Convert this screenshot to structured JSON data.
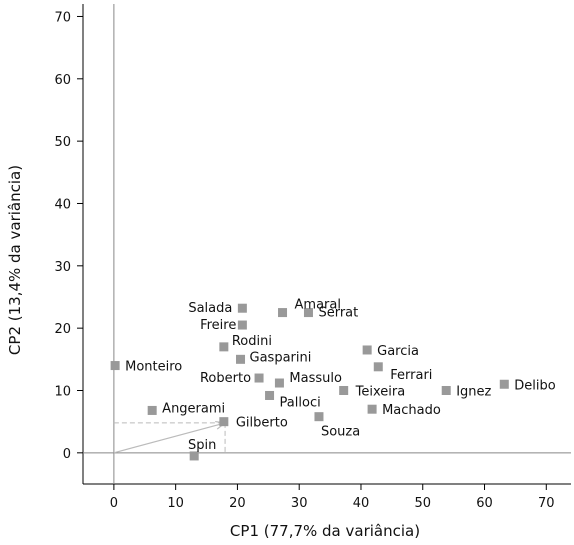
{
  "chart_data": {
    "type": "scatter",
    "xlabel": "CP1 (77,7% da variância)",
    "ylabel": "CP2 (13,4% da variância)",
    "xlim": [
      -5,
      74
    ],
    "ylim": [
      -5,
      72
    ],
    "xticks": [
      0,
      10,
      20,
      30,
      40,
      50,
      60,
      70
    ],
    "yticks": [
      0,
      10,
      20,
      30,
      40,
      50,
      60,
      70
    ],
    "grid": false,
    "legend": "none",
    "point_color": "#999999",
    "axis_color": "#888888",
    "vector": {
      "x": 18,
      "y": 4.8,
      "color": "#bbbbbb"
    },
    "points": [
      {
        "label": "Salada",
        "x": 20.8,
        "y": 23.2
      },
      {
        "label": "Amaral",
        "x": 27.3,
        "y": 22.5
      },
      {
        "label": "Serrat",
        "x": 31.5,
        "y": 22.5
      },
      {
        "label": "Freire",
        "x": 20.8,
        "y": 20.5
      },
      {
        "label": "Rodini",
        "x": 17.8,
        "y": 17.0
      },
      {
        "label": "Gasparini",
        "x": 20.5,
        "y": 15.0
      },
      {
        "label": "Garcia",
        "x": 41.0,
        "y": 16.5
      },
      {
        "label": "Ferrari",
        "x": 42.8,
        "y": 13.8
      },
      {
        "label": "Monteiro",
        "x": 0.2,
        "y": 14.0
      },
      {
        "label": "Roberto",
        "x": 23.5,
        "y": 12.0
      },
      {
        "label": "Massulo",
        "x": 26.8,
        "y": 11.2
      },
      {
        "label": "Teixeira",
        "x": 37.2,
        "y": 10.0
      },
      {
        "label": "Ignez",
        "x": 53.8,
        "y": 10.0
      },
      {
        "label": "Delibo",
        "x": 63.2,
        "y": 11.0
      },
      {
        "label": "Palloci",
        "x": 25.2,
        "y": 9.2
      },
      {
        "label": "Machado",
        "x": 41.8,
        "y": 7.0
      },
      {
        "label": "Angerami",
        "x": 6.2,
        "y": 6.8
      },
      {
        "label": "Souza",
        "x": 33.2,
        "y": 5.8
      },
      {
        "label": "Gilberto",
        "x": 17.8,
        "y": 5.0
      },
      {
        "label": "Spin",
        "x": 13.0,
        "y": -0.5
      }
    ]
  }
}
